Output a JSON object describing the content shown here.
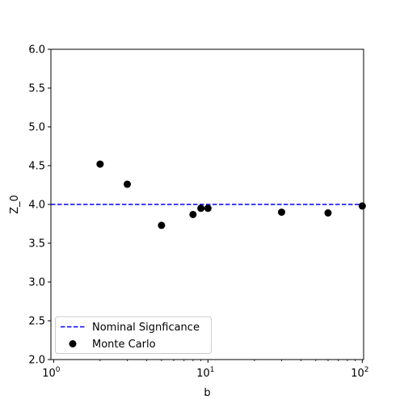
{
  "chart_data": {
    "type": "scatter",
    "title": "",
    "xlabel": "b",
    "ylabel": "Z_0",
    "xscale": "log",
    "xlim": [
      0.96,
      102
    ],
    "ylim": [
      2.0,
      6.0
    ],
    "x_ticks": [
      {
        "value": 1,
        "base": "10",
        "exp": "0"
      },
      {
        "value": 10,
        "base": "10",
        "exp": "1"
      },
      {
        "value": 100,
        "base": "10",
        "exp": "2"
      }
    ],
    "y_ticks": [
      "2.0",
      "2.5",
      "3.0",
      "3.5",
      "4.0",
      "4.5",
      "5.0",
      "5.5",
      "6.0"
    ],
    "grid": false,
    "legend_position": "lower-left",
    "series": [
      {
        "name": "Nominal Signficance",
        "type": "hline",
        "style": "dashed",
        "color": "#0000ff",
        "y": 4.0
      },
      {
        "name": "Monte Carlo",
        "type": "scatter",
        "color": "#000000",
        "points": [
          {
            "x": 2,
            "y": 4.52
          },
          {
            "x": 3,
            "y": 4.26
          },
          {
            "x": 5,
            "y": 3.73
          },
          {
            "x": 8,
            "y": 3.87
          },
          {
            "x": 9,
            "y": 3.95
          },
          {
            "x": 10,
            "y": 3.95
          },
          {
            "x": 30,
            "y": 3.9
          },
          {
            "x": 60,
            "y": 3.89
          },
          {
            "x": 100,
            "y": 3.98
          }
        ]
      }
    ]
  }
}
